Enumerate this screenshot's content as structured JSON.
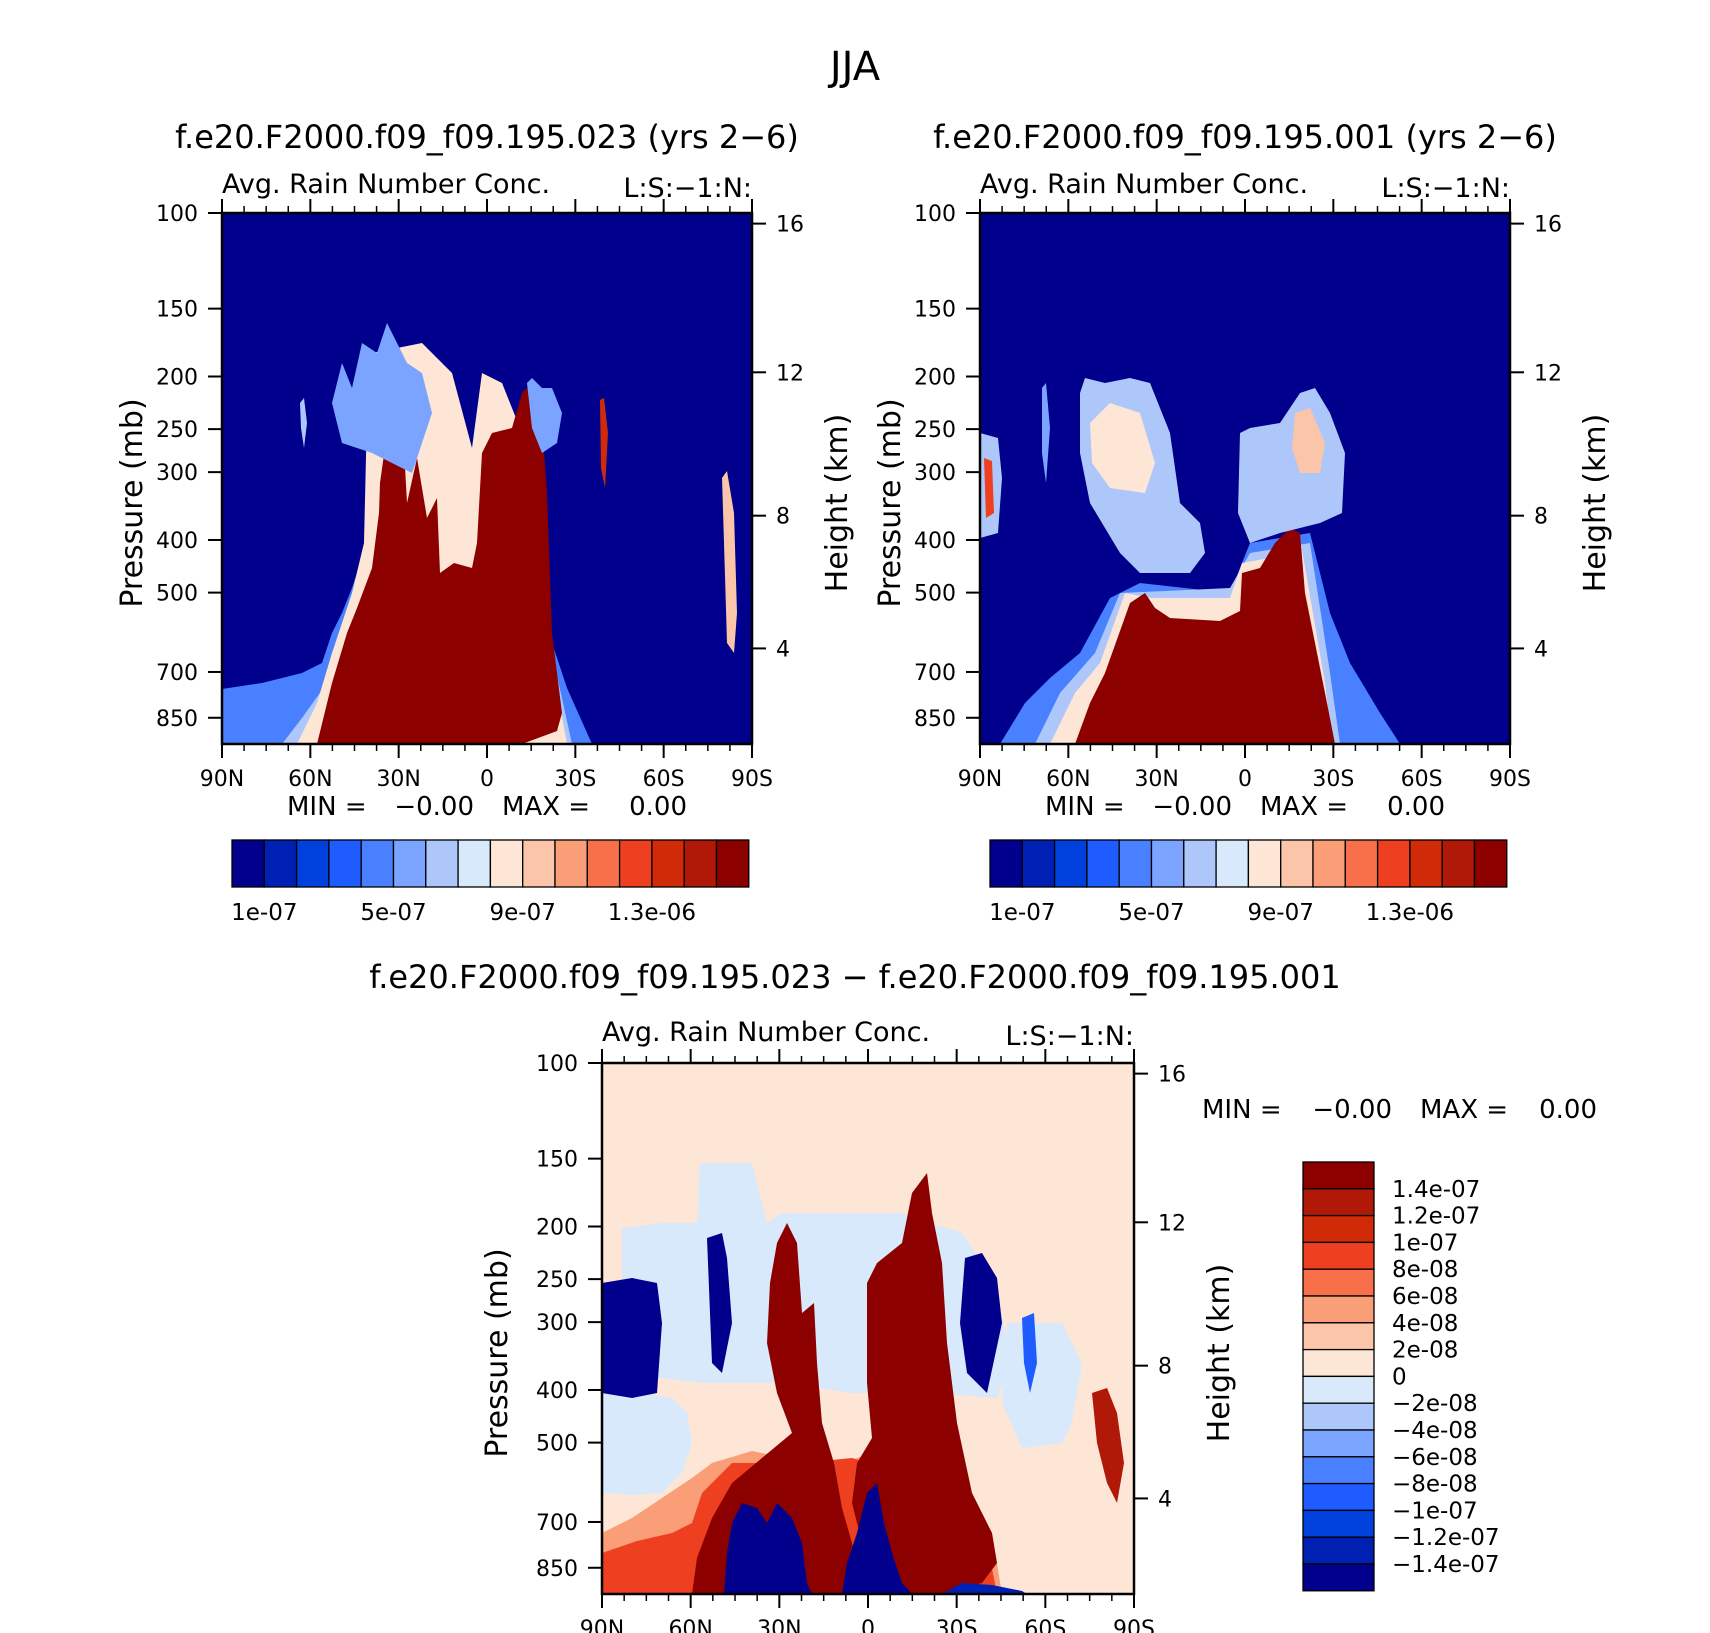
{
  "figure_title": "JJA",
  "chart_data": [
    {
      "type": "contour",
      "title": "f.e20.F2000.f09_f09.195.023 (yrs 2-6)",
      "subtitle": "Avg. Rain Number Conc.",
      "level_label": "L:S:-1:N:",
      "xlabel": "",
      "ylabel": "Pressure (mb)",
      "y2label": "Height (km)",
      "x_ticks": [
        "90N",
        "60N",
        "30N",
        "0",
        "30S",
        "60S",
        "90S"
      ],
      "y_ticks": [
        "100",
        "150",
        "200",
        "250",
        "300",
        "400",
        "500",
        "700",
        "850"
      ],
      "y2_ticks": [
        "16",
        "12",
        "8",
        "4"
      ],
      "min_label": "MIN =",
      "min_value": "-0.00",
      "max_label": "MAX =",
      "max_value": "0.00",
      "colorbar_labels": [
        "1e-07",
        "5e-07",
        "9e-07",
        "1.3e-06"
      ]
    },
    {
      "type": "contour",
      "title": "f.e20.F2000.f09_f09.195.001 (yrs 2-6)",
      "subtitle": "Avg. Rain Number Conc.",
      "level_label": "L:S:-1:N:",
      "xlabel": "",
      "ylabel": "Pressure (mb)",
      "y2label": "Height (km)",
      "x_ticks": [
        "90N",
        "60N",
        "30N",
        "0",
        "30S",
        "60S",
        "90S"
      ],
      "y_ticks": [
        "100",
        "150",
        "200",
        "250",
        "300",
        "400",
        "500",
        "700",
        "850"
      ],
      "y2_ticks": [
        "16",
        "12",
        "8",
        "4"
      ],
      "min_label": "MIN =",
      "min_value": "-0.00",
      "max_label": "MAX =",
      "max_value": "0.00",
      "colorbar_labels": [
        "1e-07",
        "5e-07",
        "9e-07",
        "1.3e-06"
      ]
    },
    {
      "type": "contour",
      "title": "f.e20.F2000.f09_f09.195.023 - f.e20.F2000.f09_f09.195.001",
      "subtitle": "Avg. Rain Number Conc.",
      "level_label": "L:S:-1:N:",
      "xlabel": "",
      "ylabel": "Pressure (mb)",
      "y2label": "Height (km)",
      "x_ticks": [
        "90N",
        "60N",
        "30N",
        "0",
        "30S",
        "60S",
        "90S"
      ],
      "y_ticks": [
        "100",
        "150",
        "200",
        "250",
        "300",
        "400",
        "500",
        "700",
        "850"
      ],
      "y2_ticks": [
        "16",
        "12",
        "8",
        "4"
      ],
      "min_label": "MIN =",
      "min_value": "-0.00",
      "max_label": "MAX =",
      "max_value": "0.00",
      "colorbar_labels": [
        "1.4e-07",
        "1.2e-07",
        "1e-07",
        "8e-08",
        "6e-08",
        "4e-08",
        "2e-08",
        "0",
        "-2e-08",
        "-4e-08",
        "-6e-08",
        "-8e-08",
        "-1e-07",
        "-1.2e-07",
        "-1.4e-07"
      ]
    }
  ],
  "colors": {
    "abs_scale": [
      "#00008c",
      "#0020b4",
      "#0040dc",
      "#1e5cff",
      "#4880ff",
      "#7aa4ff",
      "#adc7fb",
      "#d7e9fb",
      "#fde6d6",
      "#fbc5aa",
      "#fa9e78",
      "#f8704a",
      "#ee4020",
      "#d02a08",
      "#b01808",
      "#8c0000"
    ],
    "diff_scale": [
      "#8c0000",
      "#b01808",
      "#d02a08",
      "#ee4020",
      "#f8704a",
      "#fa9e78",
      "#fbc5aa",
      "#fde6d6",
      "#d7e9fb",
      "#adc7fb",
      "#7aa4ff",
      "#4880ff",
      "#1e5cff",
      "#0040dc",
      "#0020b4",
      "#00008c"
    ],
    "abs_background": "#00008c",
    "diff_background": "#fde6d6"
  }
}
